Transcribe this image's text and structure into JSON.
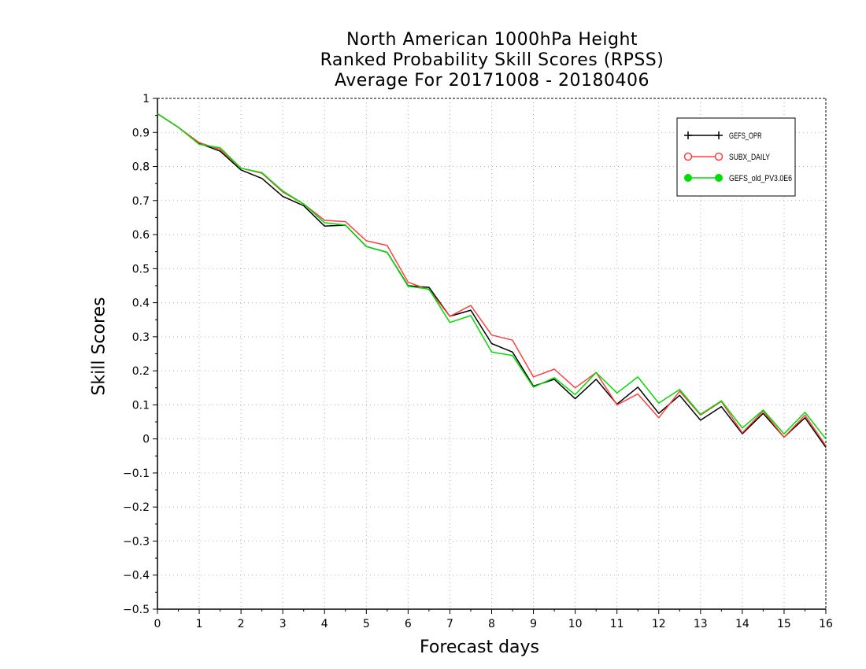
{
  "chart_data": {
    "type": "line",
    "title": [
      "North American 1000hPa Height",
      "Ranked Probability Skill Scores (RPSS)",
      "Average For 20171008 - 20180406"
    ],
    "xlabel": "Forecast days",
    "ylabel": "Skill Scores",
    "xlim": [
      0,
      16
    ],
    "ylim": [
      -0.5,
      1
    ],
    "xticks": [
      0,
      1,
      2,
      3,
      4,
      5,
      6,
      7,
      8,
      9,
      10,
      11,
      12,
      13,
      14,
      15,
      16
    ],
    "yticks": [
      -0.5,
      -0.4,
      -0.3,
      -0.2,
      -0.1,
      0,
      0.1,
      0.2,
      0.3,
      0.4,
      0.5,
      0.6,
      0.7,
      0.8,
      0.9,
      1
    ],
    "ytick_labels": [
      "−0.5",
      "−0.4",
      "−0.3",
      "−0.2",
      "−0.1",
      "0",
      "0.1",
      "0.2",
      "0.3",
      "0.4",
      "0.5",
      "0.6",
      "0.7",
      "0.8",
      "0.9",
      "1"
    ],
    "grid": true,
    "legend_position": "top-right",
    "x": [
      0,
      0.5,
      1,
      1.5,
      2,
      2.5,
      3,
      3.5,
      4,
      4.5,
      5,
      5.5,
      6,
      6.5,
      7,
      7.5,
      8,
      8.5,
      9,
      9.5,
      10,
      10.5,
      11,
      11.5,
      12,
      12.5,
      13,
      13.5,
      14,
      14.5,
      15,
      15.5,
      16
    ],
    "series": [
      {
        "name": "GEFS_OPR",
        "color": "#000000",
        "marker": "plus",
        "values": [
          0.955,
          0.915,
          0.868,
          0.845,
          0.79,
          0.765,
          0.712,
          0.685,
          0.625,
          0.628,
          0.565,
          0.548,
          0.45,
          0.445,
          0.36,
          0.378,
          0.28,
          0.255,
          0.155,
          0.175,
          0.118,
          0.175,
          0.102,
          0.152,
          0.075,
          0.128,
          0.055,
          0.095,
          0.015,
          0.075,
          0.005,
          0.062,
          -0.025
        ]
      },
      {
        "name": "SUBX_DAILY",
        "color": "#ff4040",
        "marker": "open-circle",
        "values": [
          0.955,
          0.915,
          0.87,
          0.85,
          0.795,
          0.78,
          0.725,
          0.69,
          0.642,
          0.638,
          0.582,
          0.568,
          0.46,
          0.438,
          0.36,
          0.392,
          0.305,
          0.29,
          0.182,
          0.205,
          0.15,
          0.195,
          0.1,
          0.132,
          0.062,
          0.14,
          0.07,
          0.11,
          0.018,
          0.082,
          0.005,
          0.07,
          -0.02
        ]
      },
      {
        "name": "GEFS_old_PV3.0E6",
        "color": "#00dd00",
        "marker": "filled-circle",
        "values": [
          0.955,
          0.915,
          0.865,
          0.855,
          0.795,
          0.782,
          0.728,
          0.69,
          0.635,
          0.628,
          0.565,
          0.548,
          0.448,
          0.44,
          0.342,
          0.362,
          0.255,
          0.245,
          0.152,
          0.18,
          0.13,
          0.195,
          0.135,
          0.182,
          0.105,
          0.145,
          0.072,
          0.112,
          0.032,
          0.085,
          0.015,
          0.078,
          0.0
        ]
      }
    ]
  }
}
